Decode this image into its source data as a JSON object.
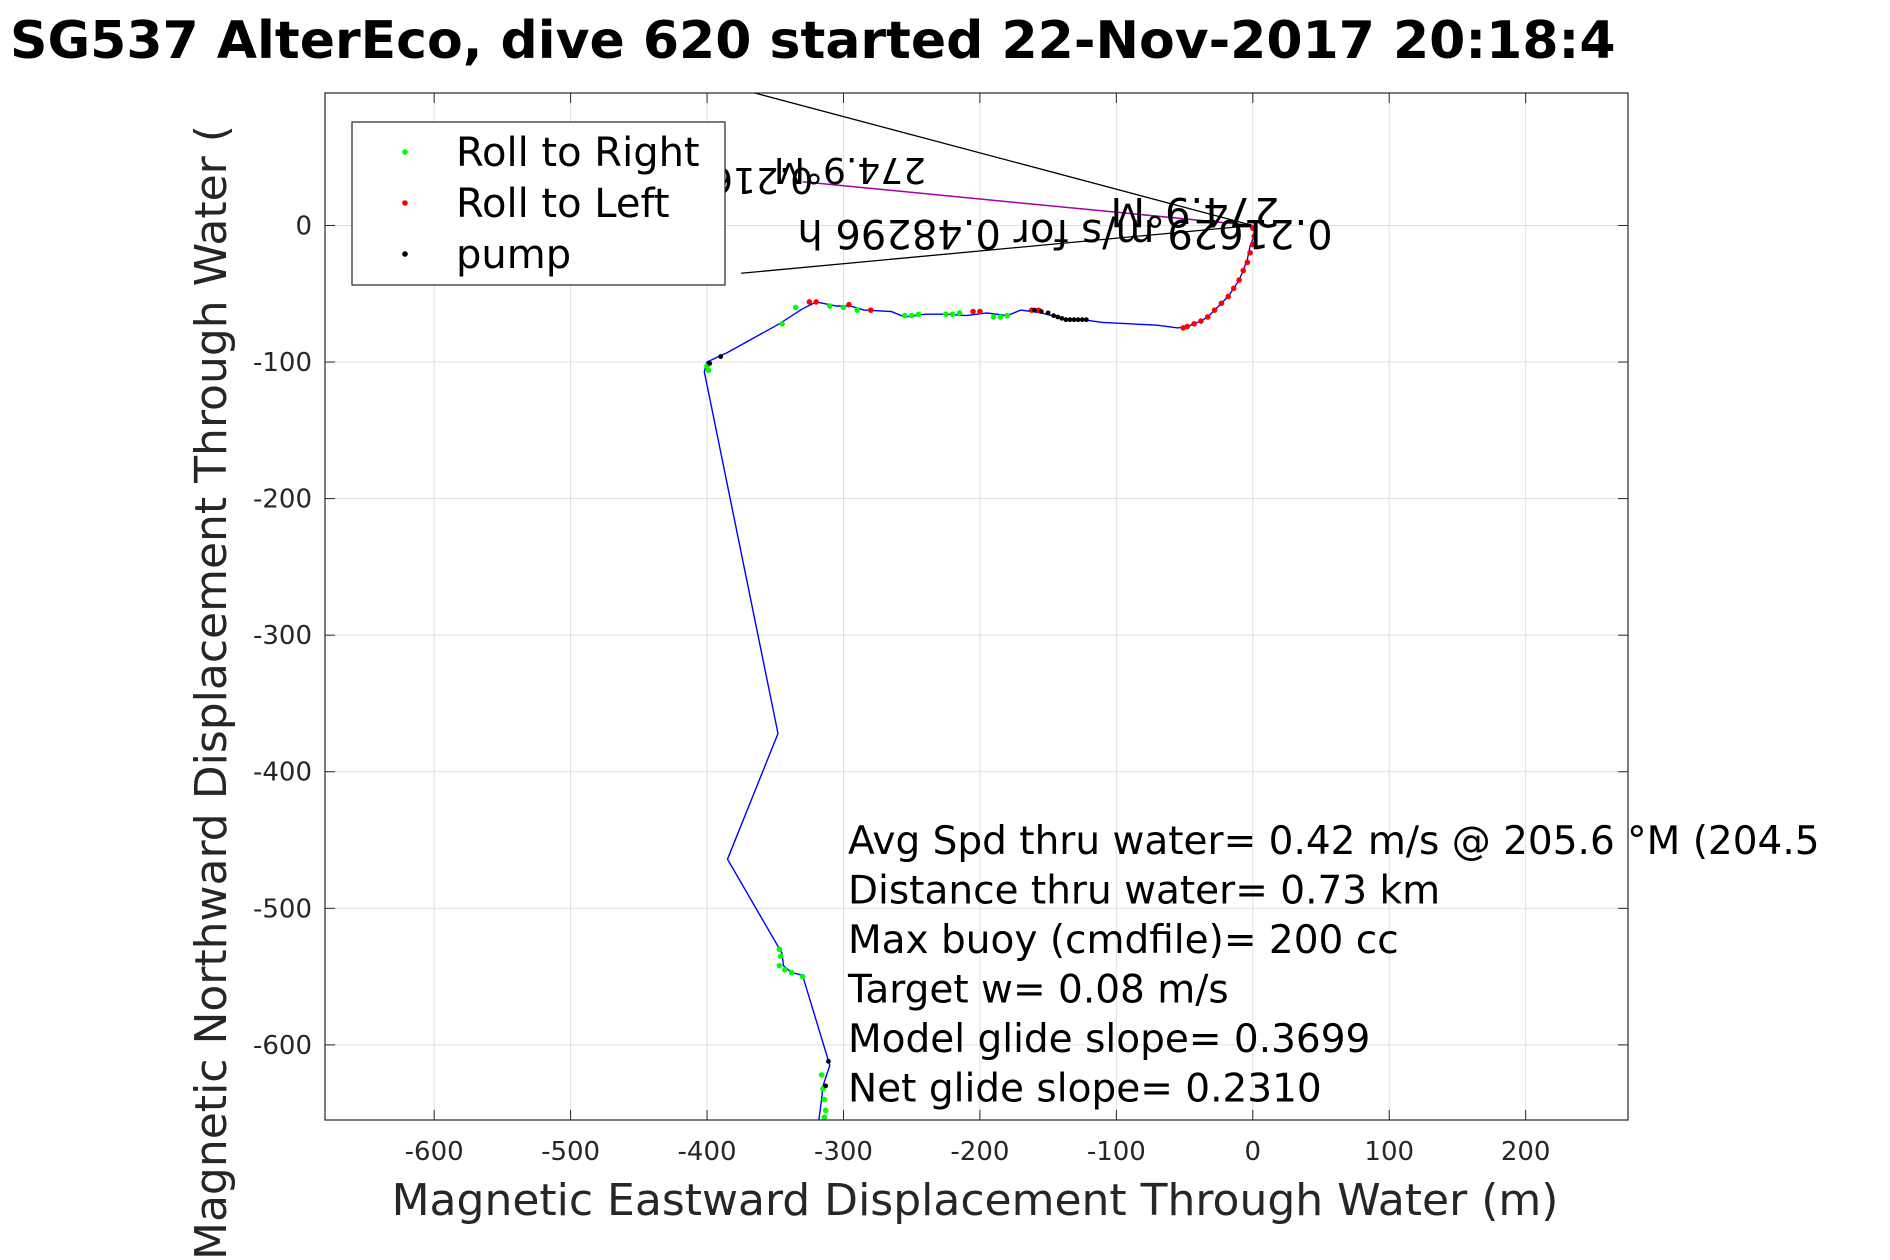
{
  "chart_data": {
    "type": "scatter",
    "title": "SG537 AlterEco, dive 620 started 22-Nov-2017 20:18:4",
    "xlabel": "Magnetic Eastward Displacement Through Water (m)",
    "ylabel": "Magnetic Northward Displacement Through Water (",
    "xlim": [
      -680,
      275
    ],
    "ylim": [
      -655,
      97
    ],
    "xticks": [
      -600,
      -500,
      -400,
      -300,
      -200,
      -100,
      0,
      100,
      200
    ],
    "yticks": [
      0,
      -100,
      -200,
      -300,
      -400,
      -500,
      -600
    ],
    "grid": true,
    "legend": {
      "placement": "top-left",
      "entries": [
        {
          "label": "Roll to Right",
          "color": "#00ff00"
        },
        {
          "label": "Roll to Left",
          "color": "#ff0000"
        },
        {
          "label": "pump",
          "color": "#000000"
        }
      ]
    },
    "track": {
      "color": "#0000ff",
      "x": [
        0,
        1,
        0,
        -2,
        -4,
        -7,
        -10,
        -14,
        -18,
        -23,
        -28,
        -33,
        -38,
        -43,
        -48,
        -55,
        -70,
        -90,
        -110,
        -125,
        -140,
        -155,
        -162,
        -170,
        -180,
        -195,
        -210,
        -225,
        -240,
        -255,
        -265,
        -285,
        -295,
        -305,
        -315,
        -320,
        -330,
        -347,
        -385,
        -400,
        -402,
        -348,
        -385,
        -345,
        -344,
        -338,
        -330,
        -310,
        -315,
        -316,
        -318
      ],
      "y": [
        0,
        -5,
        -10,
        -15,
        -25,
        -33,
        -40,
        -46,
        -52,
        -57,
        -62,
        -67,
        -70,
        -72,
        -74,
        -75,
        -73,
        -72,
        -71,
        -69,
        -68,
        -64,
        -63,
        -62,
        -66,
        -64,
        -66,
        -65,
        -65,
        -67,
        -63,
        -62,
        -59,
        -59,
        -57,
        -56,
        -61,
        -72,
        -93,
        -100,
        -107,
        -372,
        -464,
        -533,
        -542,
        -547,
        -549,
        -615,
        -630,
        -640,
        -655
      ]
    },
    "mag_vector": {
      "color": "#aa00aa",
      "x": [
        0,
        -330
      ],
      "y": [
        0,
        32
      ]
    },
    "bracket_lines": {
      "color": "#000000",
      "lines": [
        {
          "x": [
            0,
            -365
          ],
          "y": [
            0,
            97
          ]
        },
        {
          "x": [
            0,
            -375
          ],
          "y": [
            0,
            -35
          ]
        }
      ]
    },
    "roll_right": {
      "color": "#00ff00",
      "x": [
        -335,
        -310,
        -300,
        -290,
        -255,
        -250,
        -245,
        -225,
        -220,
        -215,
        -190,
        -185,
        -180,
        -345,
        -400,
        -399,
        -347,
        -346,
        -347,
        -343,
        -338,
        -330,
        -316,
        -315,
        -314,
        -313,
        -314
      ],
      "y": [
        -60,
        -59,
        -60,
        -62,
        -66,
        -66,
        -65,
        -65,
        -65,
        -64,
        -67,
        -67,
        -66,
        -72,
        -103,
        -106,
        -530,
        -535,
        -542,
        -545,
        -547,
        -550,
        -622,
        -632,
        -640,
        -648,
        -653
      ]
    },
    "roll_left": {
      "color": "#ff0000",
      "x": [
        0,
        1,
        0,
        -2,
        -4,
        -7,
        -10,
        -14,
        -18,
        -23,
        -28,
        -33,
        -38,
        -43,
        -48,
        -51,
        -320,
        -325,
        -296,
        -280,
        -205,
        -200,
        -162,
        -157
      ],
      "y": [
        -2,
        -8,
        -14,
        -20,
        -27,
        -33,
        -40,
        -46,
        -52,
        -57,
        -62,
        -67,
        -70,
        -72,
        -74,
        -75,
        -56,
        -56,
        -58,
        -62,
        -63,
        -63,
        -62,
        -62
      ]
    },
    "pump": {
      "color": "#000000",
      "x": [
        -160,
        -155,
        -150,
        -146,
        -143,
        -140,
        -137,
        -134,
        -131,
        -128,
        -125,
        -122,
        -398,
        -390,
        -311,
        -313
      ],
      "y": [
        -62,
        -63,
        -64,
        -66,
        -67,
        -68,
        -69,
        -69,
        -69,
        -69,
        -69,
        -69,
        -101,
        -96,
        -612,
        -630
      ]
    },
    "rotated_labels": [
      {
        "text": "274.9°M",
        "angle_deg": 180
      },
      {
        "text": "0.21629 m/s for 0.48296 h",
        "angle_deg": 180
      },
      {
        "text": "274.9°M",
        "angle_deg": 180
      },
      {
        "text": "0.21629 m/s",
        "angle_deg": 180
      }
    ],
    "annotations": [
      "Avg Spd thru water=  0.42 m/s @ 205.6 °M (204.5",
      "Distance thru water=  0.73 km",
      "Max buoy (cmdfile)= 200 cc",
      "Target w= 0.08 m/s",
      "Model glide slope= 0.3699",
      "Net glide slope= 0.2310"
    ]
  }
}
